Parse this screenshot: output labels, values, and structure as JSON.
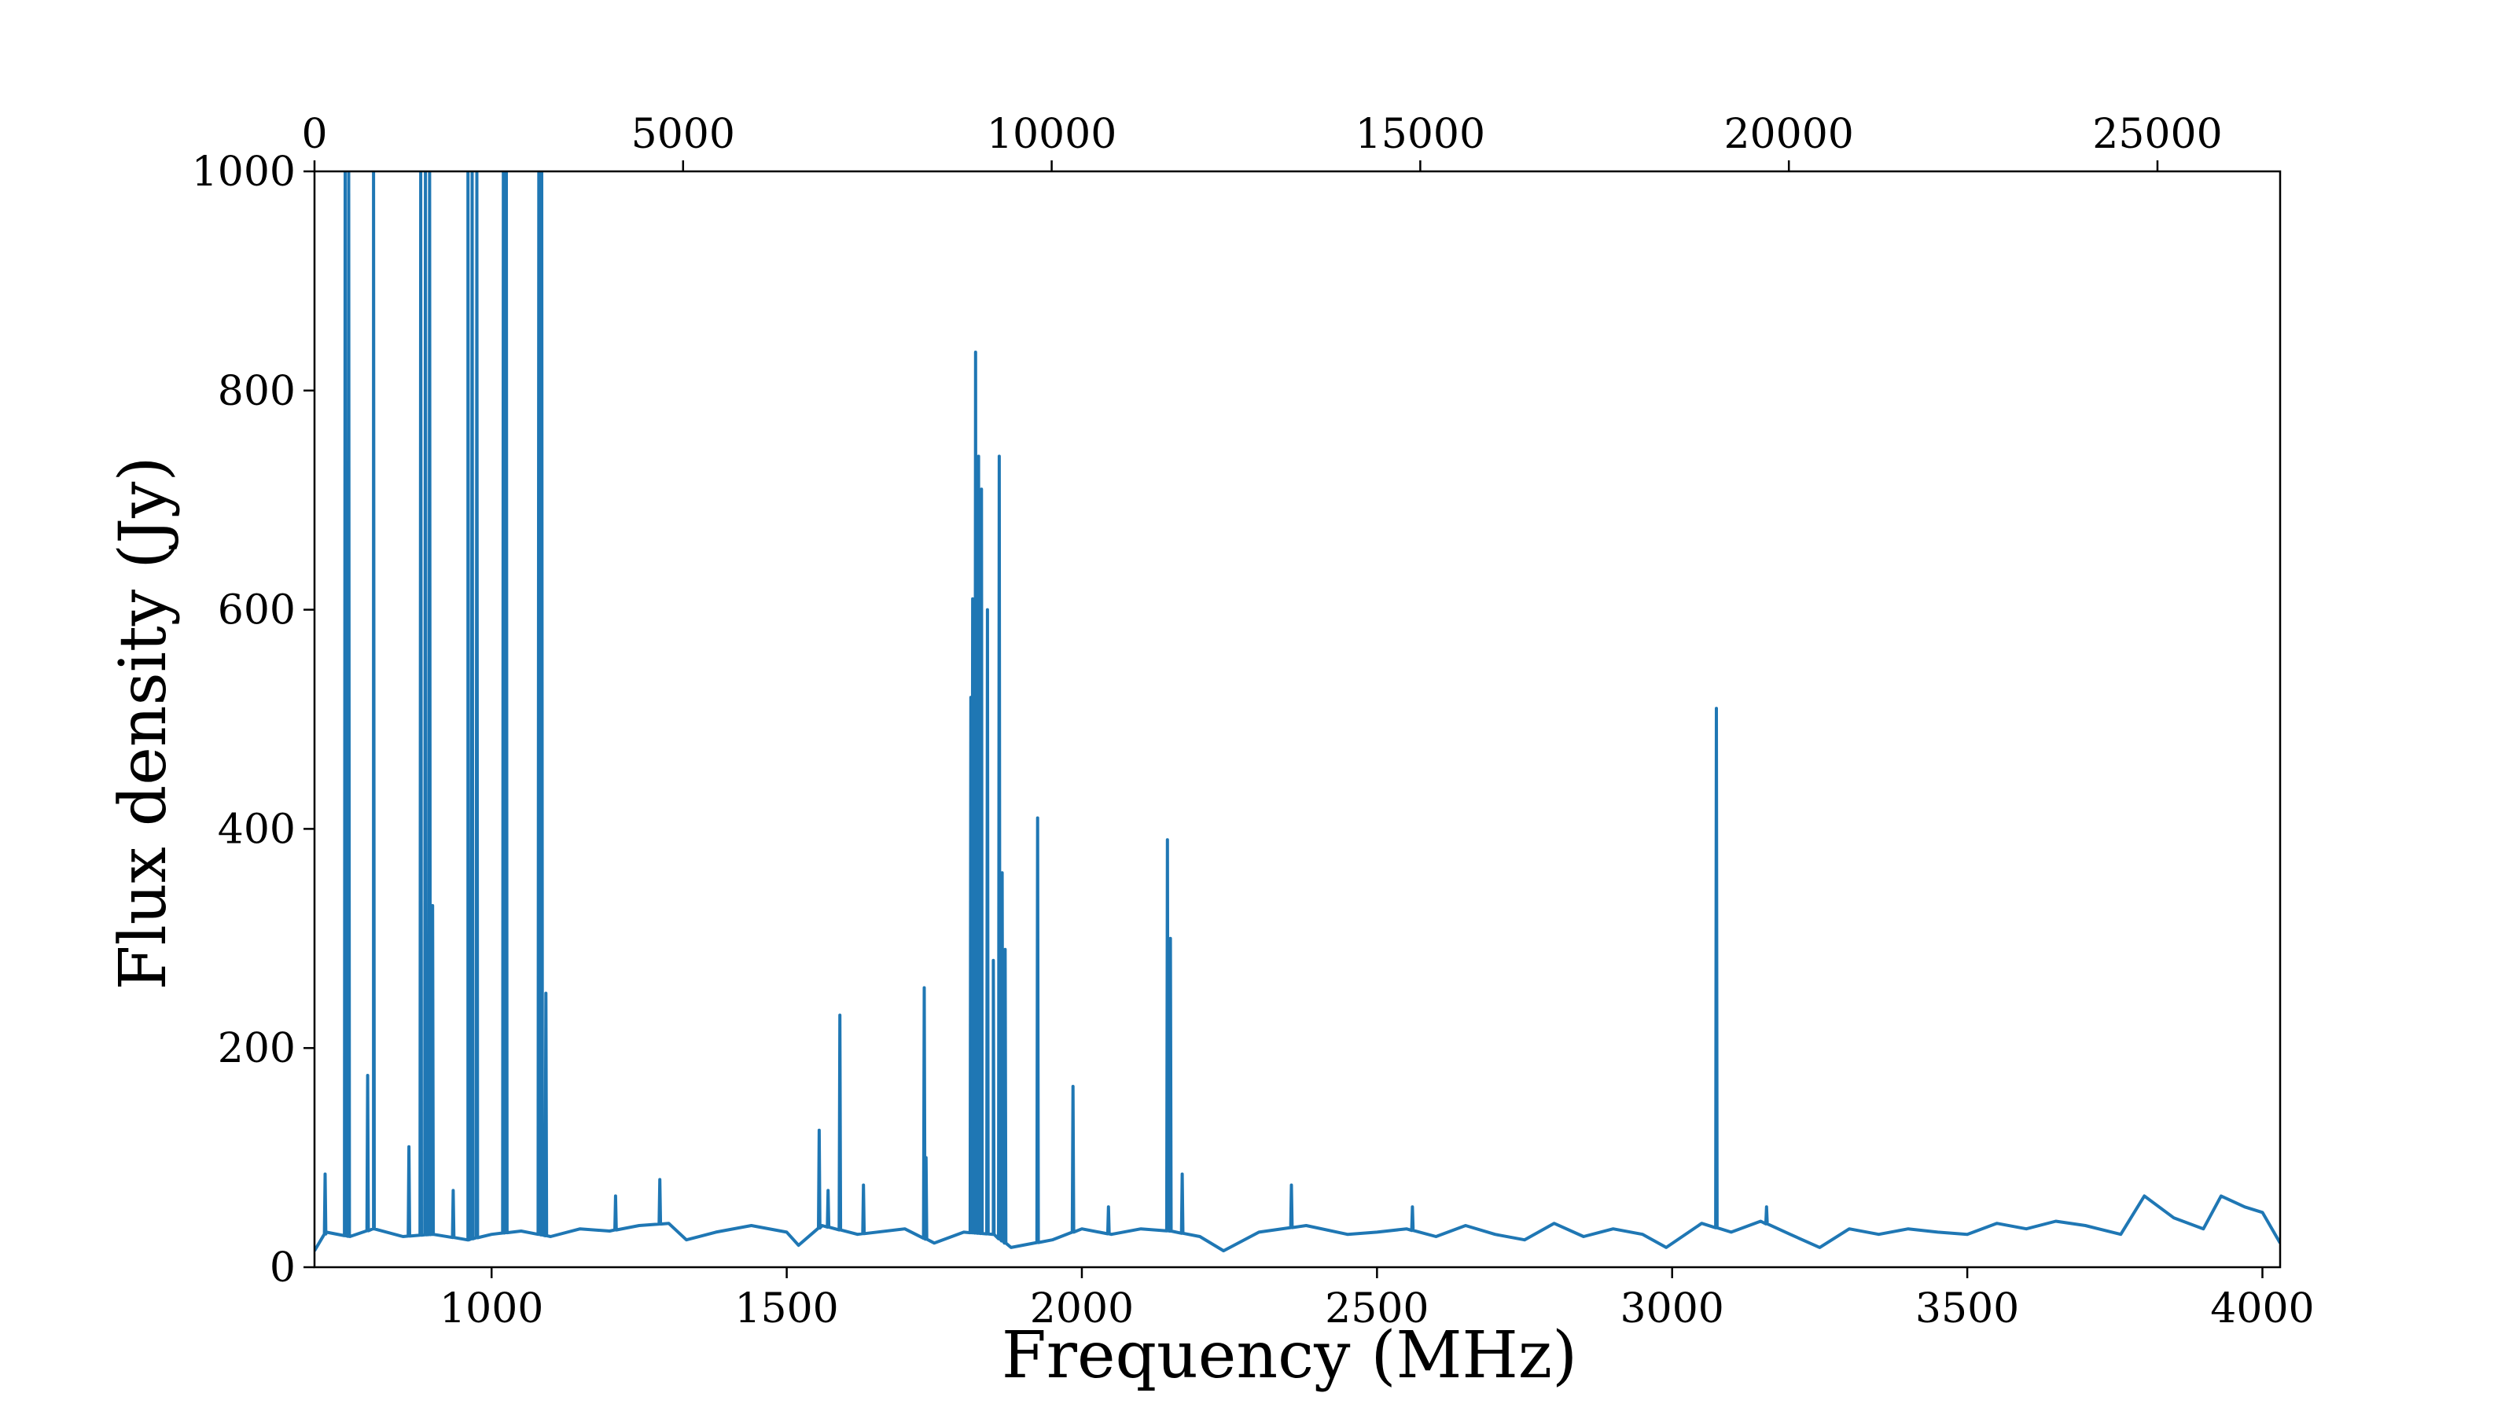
{
  "chart_data": {
    "type": "line",
    "title": "",
    "xlabel": "Frequency (MHz)",
    "ylabel": "Flux density (Jy)",
    "xlim": [
      700,
      4030
    ],
    "ylim": [
      0,
      1000
    ],
    "top_xlim": [
      0,
      26664
    ],
    "x_ticks": [
      1000,
      1500,
      2000,
      2500,
      3000,
      3500,
      4000
    ],
    "y_ticks": [
      0,
      200,
      400,
      600,
      800,
      1000
    ],
    "top_x_ticks": [
      0,
      5000,
      10000,
      15000,
      20000,
      25000
    ],
    "grid": false,
    "legend": "none",
    "series_color": "#1f77b4",
    "baseline": [
      [
        700,
        15
      ],
      [
        720,
        32
      ],
      [
        760,
        28
      ],
      [
        800,
        35
      ],
      [
        850,
        28
      ],
      [
        900,
        30
      ],
      [
        960,
        25
      ],
      [
        1000,
        30
      ],
      [
        1050,
        33
      ],
      [
        1100,
        28
      ],
      [
        1150,
        35
      ],
      [
        1200,
        33
      ],
      [
        1250,
        38
      ],
      [
        1300,
        40
      ],
      [
        1330,
        25
      ],
      [
        1380,
        32
      ],
      [
        1440,
        38
      ],
      [
        1500,
        32
      ],
      [
        1520,
        20
      ],
      [
        1560,
        38
      ],
      [
        1620,
        30
      ],
      [
        1700,
        35
      ],
      [
        1750,
        22
      ],
      [
        1800,
        32
      ],
      [
        1850,
        30
      ],
      [
        1880,
        18
      ],
      [
        1950,
        25
      ],
      [
        2000,
        35
      ],
      [
        2050,
        30
      ],
      [
        2100,
        35
      ],
      [
        2150,
        33
      ],
      [
        2200,
        28
      ],
      [
        2240,
        15
      ],
      [
        2300,
        32
      ],
      [
        2380,
        38
      ],
      [
        2450,
        30
      ],
      [
        2500,
        32
      ],
      [
        2550,
        35
      ],
      [
        2600,
        28
      ],
      [
        2650,
        38
      ],
      [
        2700,
        30
      ],
      [
        2750,
        25
      ],
      [
        2800,
        40
      ],
      [
        2850,
        28
      ],
      [
        2900,
        35
      ],
      [
        2950,
        30
      ],
      [
        2990,
        18
      ],
      [
        3050,
        40
      ],
      [
        3100,
        32
      ],
      [
        3150,
        42
      ],
      [
        3200,
        30
      ],
      [
        3250,
        18
      ],
      [
        3300,
        35
      ],
      [
        3350,
        30
      ],
      [
        3400,
        35
      ],
      [
        3450,
        32
      ],
      [
        3500,
        30
      ],
      [
        3550,
        40
      ],
      [
        3600,
        35
      ],
      [
        3650,
        42
      ],
      [
        3700,
        38
      ],
      [
        3760,
        30
      ],
      [
        3800,
        65
      ],
      [
        3850,
        45
      ],
      [
        3900,
        35
      ],
      [
        3930,
        65
      ],
      [
        3970,
        55
      ],
      [
        4000,
        50
      ],
      [
        4030,
        22
      ]
    ],
    "spikes": [
      [
        718,
        85
      ],
      [
        752,
        1000
      ],
      [
        758,
        1000
      ],
      [
        790,
        175
      ],
      [
        800,
        1000
      ],
      [
        860,
        110
      ],
      [
        880,
        1000
      ],
      [
        888,
        1000
      ],
      [
        895,
        1000
      ],
      [
        900,
        330
      ],
      [
        935,
        70
      ],
      [
        960,
        1000
      ],
      [
        967,
        1000
      ],
      [
        975,
        1000
      ],
      [
        1020,
        1000
      ],
      [
        1025,
        1000
      ],
      [
        1080,
        1000
      ],
      [
        1085,
        1000
      ],
      [
        1092,
        250
      ],
      [
        1210,
        65
      ],
      [
        1285,
        80
      ],
      [
        1555,
        125
      ],
      [
        1570,
        70
      ],
      [
        1590,
        230
      ],
      [
        1630,
        75
      ],
      [
        1733,
        255
      ],
      [
        1736,
        100
      ],
      [
        1812,
        520
      ],
      [
        1815,
        610
      ],
      [
        1820,
        835
      ],
      [
        1825,
        740
      ],
      [
        1830,
        710
      ],
      [
        1840,
        600
      ],
      [
        1850,
        280
      ],
      [
        1860,
        740
      ],
      [
        1865,
        360
      ],
      [
        1870,
        290
      ],
      [
        1925,
        410
      ],
      [
        1985,
        165
      ],
      [
        2045,
        55
      ],
      [
        2145,
        390
      ],
      [
        2150,
        300
      ],
      [
        2170,
        85
      ],
      [
        2355,
        75
      ],
      [
        2560,
        55
      ],
      [
        3075,
        510
      ],
      [
        3160,
        55
      ]
    ]
  }
}
